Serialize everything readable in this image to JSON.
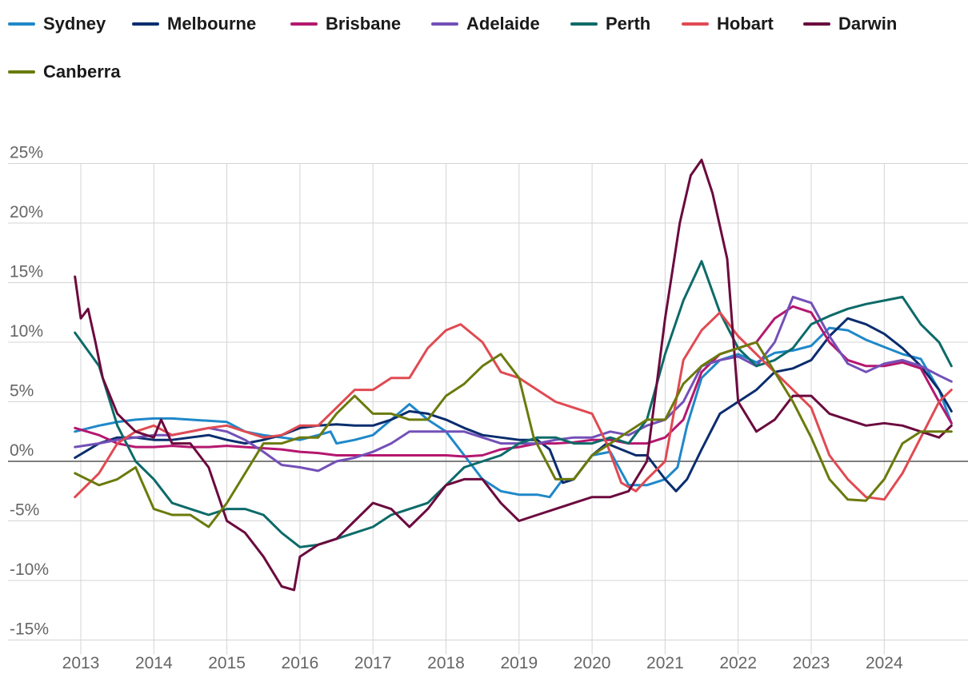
{
  "chart_data": {
    "type": "line",
    "title": "",
    "xlabel": "",
    "ylabel": "",
    "ylim": [
      -15,
      25
    ],
    "xlim": [
      2012.9,
      2025.0
    ],
    "y_ticks": [
      -15,
      -10,
      -5,
      0,
      5,
      10,
      15,
      20,
      25
    ],
    "y_tick_labels": [
      "-15%",
      "-10%",
      "-5%",
      "0%",
      "5%",
      "10%",
      "15%",
      "20%",
      "25%"
    ],
    "x_ticks": [
      2013,
      2014,
      2015,
      2016,
      2017,
      2018,
      2019,
      2020,
      2021,
      2022,
      2023,
      2024
    ],
    "x_tick_labels": [
      "2013",
      "2014",
      "2015",
      "2016",
      "2017",
      "2018",
      "2019",
      "2020",
      "2021",
      "2022",
      "2023",
      "2024"
    ],
    "grid": true,
    "legend_position": "top-left",
    "series": [
      {
        "name": "Sydney",
        "color": "#1f88c9",
        "x": [
          2012.92,
          2013.25,
          2013.5,
          2013.75,
          2014.0,
          2014.25,
          2014.5,
          2014.75,
          2015.0,
          2015.25,
          2015.5,
          2015.75,
          2016.0,
          2016.25,
          2016.42,
          2016.5,
          2016.75,
          2017.0,
          2017.25,
          2017.5,
          2017.75,
          2018.0,
          2018.25,
          2018.5,
          2018.75,
          2019.0,
          2019.25,
          2019.42,
          2019.6,
          2019.75,
          2020.0,
          2020.25,
          2020.5,
          2020.75,
          2021.0,
          2021.17,
          2021.3,
          2021.5,
          2021.75,
          2022.0,
          2022.25,
          2022.5,
          2022.75,
          2023.0,
          2023.25,
          2023.5,
          2023.75,
          2024.0,
          2024.25,
          2024.5,
          2024.75,
          2024.92
        ],
        "y": [
          2.5,
          3,
          3.3,
          3.5,
          3.6,
          3.6,
          3.5,
          3.4,
          3.3,
          2.5,
          2.2,
          2,
          1.8,
          2.2,
          2.5,
          1.5,
          1.8,
          2.2,
          3.5,
          4.8,
          3.5,
          2.5,
          0.5,
          -1.5,
          -2.5,
          -2.8,
          -2.8,
          -3,
          -1.5,
          -1.5,
          0.5,
          0.8,
          -2,
          -2,
          -1.5,
          -0.5,
          3,
          7,
          8.5,
          9,
          8.3,
          9.1,
          9.3,
          9.7,
          11.2,
          11,
          10.2,
          9.6,
          9,
          8.6,
          6,
          3.2
        ]
      },
      {
        "name": "Melbourne",
        "color": "#0a2d6e",
        "x": [
          2012.92,
          2013.25,
          2013.5,
          2013.75,
          2014.0,
          2014.25,
          2014.5,
          2014.75,
          2015.0,
          2015.25,
          2015.5,
          2015.75,
          2016.0,
          2016.25,
          2016.5,
          2016.75,
          2017.0,
          2017.25,
          2017.5,
          2017.75,
          2018.0,
          2018.25,
          2018.5,
          2018.75,
          2019.0,
          2019.25,
          2019.42,
          2019.6,
          2019.75,
          2020.0,
          2020.2,
          2020.4,
          2020.6,
          2020.75,
          2021.0,
          2021.15,
          2021.3,
          2021.5,
          2021.75,
          2022.0,
          2022.25,
          2022.5,
          2022.75,
          2023.0,
          2023.25,
          2023.5,
          2023.75,
          2024.0,
          2024.25,
          2024.5,
          2024.75,
          2024.92
        ],
        "y": [
          0.3,
          1.5,
          2,
          2,
          1.8,
          1.8,
          2,
          2.2,
          1.8,
          1.5,
          1.8,
          2.2,
          2.8,
          3,
          3.1,
          3,
          3,
          3.5,
          4.2,
          4,
          3.5,
          2.8,
          2.2,
          2,
          1.8,
          1.8,
          1,
          -1.8,
          -1.5,
          0.5,
          1.5,
          1,
          0.5,
          0.5,
          -1.5,
          -2.5,
          -1.5,
          1,
          4,
          5,
          6,
          7.5,
          7.8,
          8.5,
          10.5,
          12,
          11.5,
          10.7,
          9.5,
          8,
          6,
          4.2
        ]
      },
      {
        "name": "Brisbane",
        "color": "#b5176f",
        "x": [
          2012.92,
          2013.25,
          2013.5,
          2013.75,
          2014.0,
          2014.25,
          2014.5,
          2014.75,
          2015.0,
          2015.25,
          2015.5,
          2015.75,
          2016.0,
          2016.25,
          2016.5,
          2016.75,
          2017.0,
          2017.25,
          2017.5,
          2017.75,
          2018.0,
          2018.25,
          2018.5,
          2018.75,
          2019.0,
          2019.25,
          2019.5,
          2019.75,
          2020.0,
          2020.25,
          2020.5,
          2020.75,
          2021.0,
          2021.25,
          2021.5,
          2021.75,
          2022.0,
          2022.25,
          2022.5,
          2022.75,
          2023.0,
          2023.25,
          2023.5,
          2023.75,
          2024.0,
          2024.25,
          2024.5,
          2024.75,
          2024.92
        ],
        "y": [
          2.8,
          2.2,
          1.5,
          1.2,
          1.2,
          1.3,
          1.2,
          1.2,
          1.3,
          1.2,
          1.1,
          1,
          0.8,
          0.7,
          0.5,
          0.5,
          0.5,
          0.5,
          0.5,
          0.5,
          0.5,
          0.4,
          0.5,
          1,
          1.2,
          1.5,
          1.5,
          1.6,
          1.8,
          1.8,
          1.5,
          1.5,
          2,
          3.5,
          7.5,
          9,
          9.5,
          10,
          12,
          13,
          12.5,
          10,
          8.5,
          8,
          8,
          8.3,
          7.8,
          5,
          3.2
        ]
      },
      {
        "name": "Adelaide",
        "color": "#7350b8",
        "x": [
          2012.92,
          2013.25,
          2013.5,
          2013.75,
          2014.0,
          2014.25,
          2014.5,
          2014.75,
          2015.0,
          2015.25,
          2015.5,
          2015.75,
          2016.0,
          2016.25,
          2016.5,
          2016.75,
          2017.0,
          2017.25,
          2017.5,
          2017.75,
          2018.0,
          2018.25,
          2018.5,
          2018.75,
          2019.0,
          2019.25,
          2019.5,
          2019.75,
          2020.0,
          2020.25,
          2020.5,
          2020.75,
          2021.0,
          2021.25,
          2021.5,
          2021.75,
          2022.0,
          2022.25,
          2022.5,
          2022.75,
          2023.0,
          2023.25,
          2023.5,
          2023.75,
          2024.0,
          2024.25,
          2024.5,
          2024.75,
          2024.92
        ],
        "y": [
          1.2,
          1.5,
          1.8,
          2,
          2.2,
          2.2,
          2.5,
          2.8,
          2.5,
          1.8,
          0.8,
          -0.3,
          -0.5,
          -0.8,
          0,
          0.3,
          0.8,
          1.5,
          2.5,
          2.5,
          2.5,
          2.5,
          2,
          1.5,
          1.5,
          1.5,
          1.8,
          2,
          2,
          2.5,
          2.2,
          3,
          3.5,
          5,
          8,
          8.5,
          8.8,
          8,
          10,
          13.8,
          13.3,
          10.5,
          8.2,
          7.5,
          8.2,
          8.5,
          8,
          7.2,
          6.7
        ]
      },
      {
        "name": "Perth",
        "color": "#0d6b69",
        "x": [
          2012.92,
          2013.25,
          2013.5,
          2013.75,
          2014.0,
          2014.25,
          2014.5,
          2014.75,
          2015.0,
          2015.25,
          2015.5,
          2015.75,
          2016.0,
          2016.25,
          2016.5,
          2016.75,
          2017.0,
          2017.25,
          2017.5,
          2017.75,
          2018.0,
          2018.25,
          2018.5,
          2018.75,
          2019.0,
          2019.25,
          2019.5,
          2019.75,
          2020.0,
          2020.25,
          2020.5,
          2020.75,
          2021.0,
          2021.25,
          2021.5,
          2021.75,
          2022.0,
          2022.25,
          2022.5,
          2022.75,
          2023.0,
          2023.25,
          2023.5,
          2023.75,
          2024.0,
          2024.25,
          2024.5,
          2024.75,
          2024.92
        ],
        "y": [
          10.8,
          8,
          3,
          0,
          -1.5,
          -3.5,
          -4,
          -4.5,
          -4,
          -4,
          -4.5,
          -6,
          -7.2,
          -7,
          -6.5,
          -6,
          -5.5,
          -4.5,
          -4,
          -3.5,
          -2,
          -0.5,
          0,
          0.5,
          1.5,
          2,
          2,
          1.5,
          1.5,
          2,
          1.5,
          3.5,
          9,
          13.5,
          16.8,
          12.5,
          9.5,
          8,
          8.5,
          9.5,
          11.5,
          12.2,
          12.8,
          13.2,
          13.5,
          13.8,
          11.5,
          10,
          8
        ]
      },
      {
        "name": "Hobart",
        "color": "#e04a52",
        "x": [
          2012.92,
          2013.25,
          2013.5,
          2013.75,
          2014.0,
          2014.25,
          2014.5,
          2014.75,
          2015.0,
          2015.25,
          2015.5,
          2015.75,
          2016.0,
          2016.25,
          2016.5,
          2016.75,
          2017.0,
          2017.25,
          2017.5,
          2017.75,
          2018.0,
          2018.2,
          2018.5,
          2018.75,
          2019.0,
          2019.25,
          2019.5,
          2019.75,
          2020.0,
          2020.2,
          2020.4,
          2020.6,
          2020.75,
          2021.0,
          2021.25,
          2021.5,
          2021.75,
          2022.0,
          2022.25,
          2022.5,
          2022.75,
          2023.0,
          2023.25,
          2023.5,
          2023.75,
          2024.0,
          2024.25,
          2024.5,
          2024.75,
          2024.92
        ],
        "y": [
          -3,
          -1,
          1.5,
          2.5,
          3,
          2.2,
          2.5,
          2.8,
          3,
          2.5,
          2,
          2.2,
          3,
          3,
          4.5,
          6,
          6,
          7,
          7,
          9.5,
          11,
          11.5,
          10,
          7.5,
          7,
          6,
          5,
          4.5,
          4,
          1.5,
          -1.8,
          -2.5,
          -1.5,
          0,
          8.5,
          11,
          12.5,
          10.5,
          9,
          7.5,
          6,
          4.5,
          0.5,
          -1.5,
          -3,
          -3.2,
          -1,
          2,
          5,
          6
        ]
      },
      {
        "name": "Darwin",
        "color": "#6b0a3e",
        "x": [
          2012.92,
          2013.0,
          2013.1,
          2013.2,
          2013.3,
          2013.5,
          2013.75,
          2014.0,
          2014.1,
          2014.25,
          2014.5,
          2014.75,
          2015.0,
          2015.25,
          2015.5,
          2015.75,
          2015.92,
          2016.0,
          2016.25,
          2016.5,
          2016.75,
          2017.0,
          2017.25,
          2017.5,
          2017.75,
          2018.0,
          2018.25,
          2018.5,
          2018.75,
          2019.0,
          2019.25,
          2019.5,
          2019.75,
          2020.0,
          2020.25,
          2020.5,
          2020.75,
          2021.0,
          2021.2,
          2021.35,
          2021.5,
          2021.65,
          2021.85,
          2022.0,
          2022.25,
          2022.5,
          2022.75,
          2023.0,
          2023.25,
          2023.5,
          2023.75,
          2024.0,
          2024.25,
          2024.5,
          2024.75,
          2024.92
        ],
        "y": [
          15.5,
          12,
          12.8,
          10,
          7,
          4,
          2.5,
          2,
          3.5,
          1.5,
          1.5,
          -0.5,
          -5,
          -6,
          -8,
          -10.5,
          -10.8,
          -8,
          -7,
          -6.5,
          -5,
          -3.5,
          -4,
          -5.5,
          -4,
          -2,
          -1.5,
          -1.5,
          -3.5,
          -5,
          -4.5,
          -4,
          -3.5,
          -3,
          -3,
          -2.5,
          0,
          12,
          20,
          24,
          25.3,
          22.5,
          17,
          5,
          2.5,
          3.5,
          5.5,
          5.5,
          4,
          3.5,
          3,
          3.2,
          3,
          2.5,
          2,
          3
        ]
      },
      {
        "name": "Canberra",
        "color": "#6b7a0c",
        "x": [
          2012.92,
          2013.25,
          2013.5,
          2013.75,
          2014.0,
          2014.25,
          2014.5,
          2014.75,
          2015.0,
          2015.25,
          2015.5,
          2015.75,
          2016.0,
          2016.25,
          2016.5,
          2016.75,
          2017.0,
          2017.25,
          2017.5,
          2017.75,
          2018.0,
          2018.25,
          2018.5,
          2018.75,
          2019.0,
          2019.2,
          2019.5,
          2019.75,
          2020.0,
          2020.25,
          2020.5,
          2020.75,
          2021.0,
          2021.25,
          2021.5,
          2021.75,
          2022.0,
          2022.25,
          2022.5,
          2022.75,
          2023.0,
          2023.25,
          2023.5,
          2023.75,
          2024.0,
          2024.25,
          2024.5,
          2024.75,
          2024.92
        ],
        "y": [
          -1,
          -2,
          -1.5,
          -0.5,
          -4,
          -4.5,
          -4.5,
          -5.5,
          -3.5,
          -1,
          1.5,
          1.5,
          2,
          2,
          4,
          5.5,
          4,
          4,
          3.5,
          3.5,
          5.5,
          6.5,
          8,
          9,
          7,
          2,
          -1.5,
          -1.5,
          0.5,
          1.5,
          2.5,
          3.5,
          3.5,
          6.5,
          8,
          9,
          9.5,
          10,
          7.5,
          5,
          2,
          -1.5,
          -3.2,
          -3.3,
          -1.5,
          1.5,
          2.5,
          2.5,
          2.5
        ]
      }
    ]
  }
}
